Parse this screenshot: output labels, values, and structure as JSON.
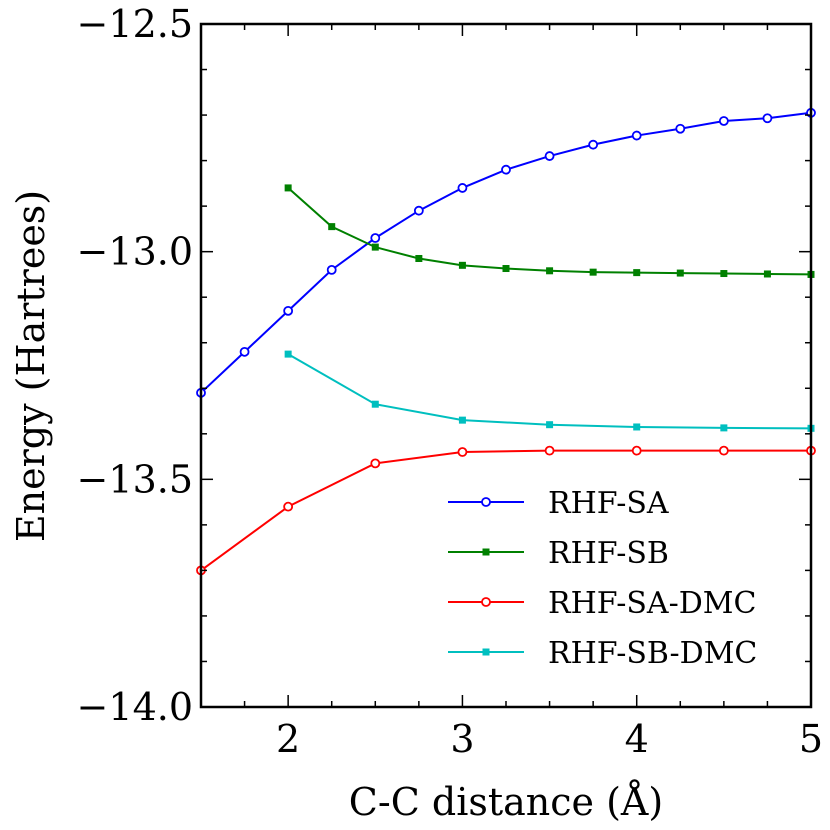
{
  "chart_data": {
    "type": "line",
    "title": "",
    "xlabel": "C-C distance (Å)",
    "ylabel": "Energy (Hartrees)",
    "xlim": [
      1.5,
      5.0
    ],
    "ylim": [
      -14.0,
      -12.5
    ],
    "x_ticks": [
      2,
      3,
      4,
      5
    ],
    "x_tick_labels": [
      "2",
      "3",
      "4",
      "5"
    ],
    "y_ticks": [
      -14.0,
      -13.5,
      -13.0,
      -12.5
    ],
    "y_tick_labels": [
      "−14.0",
      "−13.5",
      "−13.0",
      "−12.5"
    ],
    "grid": false,
    "legend_position": "lower-right",
    "series": [
      {
        "name": "RHF-SA",
        "color": "#0000ff",
        "marker": "circle-open",
        "x": [
          1.5,
          1.75,
          2.0,
          2.25,
          2.5,
          2.75,
          3.0,
          3.25,
          3.5,
          3.75,
          4.0,
          4.25,
          4.5,
          4.75,
          5.0
        ],
        "y": [
          -13.31,
          -13.22,
          -13.13,
          -13.04,
          -12.97,
          -12.91,
          -12.86,
          -12.82,
          -12.79,
          -12.765,
          -12.745,
          -12.73,
          -12.713,
          -12.707,
          -12.695
        ]
      },
      {
        "name": "RHF-SB",
        "color": "#008000",
        "marker": "square",
        "x": [
          2.0,
          2.25,
          2.5,
          2.75,
          3.0,
          3.25,
          3.5,
          3.75,
          4.0,
          4.25,
          4.5,
          4.75,
          5.0
        ],
        "y": [
          -12.86,
          -12.945,
          -12.99,
          -13.015,
          -13.03,
          -13.037,
          -13.042,
          -13.045,
          -13.046,
          -13.047,
          -13.048,
          -13.049,
          -13.05
        ]
      },
      {
        "name": "RHF-SA-DMC",
        "color": "#ff0000",
        "marker": "circle-open",
        "x": [
          1.5,
          2.0,
          2.5,
          3.0,
          3.5,
          4.0,
          4.5,
          5.0
        ],
        "y": [
          -13.7,
          -13.56,
          -13.465,
          -13.44,
          -13.437,
          -13.437,
          -13.437,
          -13.437
        ]
      },
      {
        "name": "RHF-SB-DMC",
        "color": "#00bfbf",
        "marker": "square",
        "x": [
          2.0,
          2.5,
          3.0,
          3.5,
          4.0,
          4.5,
          5.0
        ],
        "y": [
          -13.225,
          -13.335,
          -13.37,
          -13.38,
          -13.385,
          -13.387,
          -13.388
        ]
      }
    ]
  }
}
